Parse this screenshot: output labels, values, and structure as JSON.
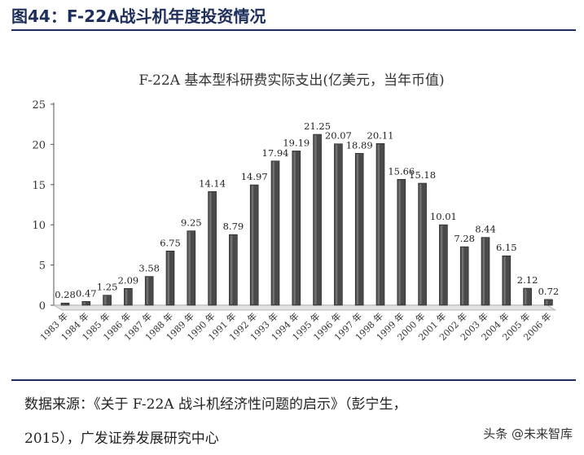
{
  "figure": {
    "title": "图44：F-22A战斗机年度投资情况"
  },
  "source": {
    "line1": "数据来源：《关于 F-22A 战斗机经济性问题的启示》（彭宁生，",
    "line2": "2015），广发证券发展研究中心"
  },
  "watermark": "头条 @未来智库",
  "chart_data": {
    "type": "bar",
    "title": "F-22A 基本型科研费实际支出(亿美元，当年币值)",
    "xlabel": "",
    "ylabel": "",
    "ylim": [
      0,
      25
    ],
    "yticks": [
      0,
      5,
      10,
      15,
      20,
      25
    ],
    "grid": false,
    "categories": [
      "1983 年",
      "1984 年",
      "1985 年",
      "1986 年",
      "1987 年",
      "1988 年",
      "1989 年",
      "1990 年",
      "1991 年",
      "1992 年",
      "1993 年",
      "1994 年",
      "1995 年",
      "1996 年",
      "1997 年",
      "1998 年",
      "1999 年",
      "2000 年",
      "2001 年",
      "2002 年",
      "2003 年",
      "2004 年",
      "2005 年",
      "2006 年"
    ],
    "values": [
      0.28,
      0.47,
      1.25,
      2.09,
      3.58,
      6.75,
      9.25,
      14.14,
      8.79,
      14.97,
      17.94,
      19.19,
      21.25,
      20.07,
      18.89,
      20.11,
      15.66,
      15.18,
      10.01,
      7.28,
      8.44,
      6.15,
      2.12,
      0.72
    ],
    "data_labels": [
      "0.28",
      "0.47",
      "1.25",
      "2.09",
      "3.58",
      "6.75",
      "9.25",
      "14.14",
      "8.79",
      "14.97",
      "17.94",
      "19.19",
      "21.25",
      "20.07",
      "18.89",
      "20.11",
      "15.66",
      "15.18",
      "10.01",
      "7.28",
      "8.44",
      "6.15",
      "2.12",
      "0.72"
    ],
    "bar_color": "#4a4a4a"
  }
}
